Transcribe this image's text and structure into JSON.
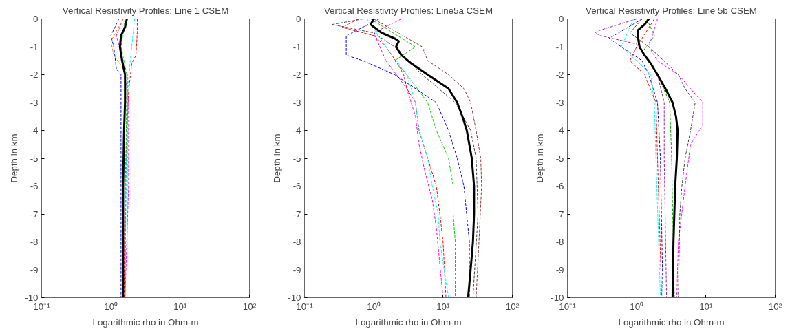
{
  "chart_data": [
    {
      "type": "line",
      "title": "Vertical Resistivity Profiles: Line 1 CSEM",
      "xlabel": "Logarithmic rho in Ohm-m",
      "ylabel": "Depth in km",
      "log": "x",
      "xlim": [
        0.1,
        100
      ],
      "xticks": [
        {
          "value": 0.1,
          "label": "10⁻¹"
        },
        {
          "value": 1,
          "label": "10⁰"
        },
        {
          "value": 10,
          "label": "10¹"
        },
        {
          "value": 100,
          "label": "10²"
        }
      ],
      "ylim": [
        -10,
        0
      ],
      "yticks": [
        0,
        -1,
        -2,
        -3,
        -4,
        -5,
        -6,
        -7,
        -8,
        -9,
        -10
      ],
      "series": [
        {
          "color": "#ff0000",
          "line_style": "dashed",
          "x": [
            2.4,
            2.4,
            2.3,
            2.0,
            1.8,
            1.7,
            1.6,
            1.55
          ],
          "values": [
            0,
            -0.5,
            -1.3,
            -1.6,
            -2.6,
            -4,
            -6,
            -10
          ]
        },
        {
          "color": "#0000ff",
          "line_style": "dashed",
          "x": [
            1.3,
            1.0,
            1.1,
            1.2,
            1.4,
            1.4,
            1.4
          ],
          "values": [
            0,
            -0.6,
            -1.0,
            -1.8,
            -2,
            -4,
            -10
          ]
        },
        {
          "color": "#ff00ff",
          "line_style": "dashed",
          "x": [
            1.5,
            1.2,
            1.5,
            1.8,
            1.8,
            1.6
          ],
          "values": [
            0,
            -0.6,
            -1.5,
            -3,
            -6,
            -10
          ]
        },
        {
          "color": "#00ffff",
          "line_style": "dashed",
          "x": [
            2.2,
            1.9,
            1.7,
            1.6
          ],
          "values": [
            0,
            -1.5,
            -3,
            -10
          ]
        },
        {
          "color": "#00cc00",
          "line_style": "dashed",
          "x": [
            1.6,
            1.4,
            1.7,
            1.65,
            1.6
          ],
          "values": [
            0,
            -1,
            -2,
            -5,
            -10
          ]
        },
        {
          "color": "#ff8000",
          "line_style": "dashed",
          "x": [
            1.5,
            1.0,
            1.1,
            1.75,
            1.7
          ],
          "values": [
            0,
            -0.8,
            -1.3,
            -2,
            -10
          ]
        },
        {
          "color": "#000000",
          "line_style": "solid",
          "x": [
            1.7,
            1.6,
            1.4,
            1.35,
            1.45,
            1.6,
            1.6,
            1.55,
            1.5,
            1.5
          ],
          "values": [
            0,
            -0.3,
            -0.6,
            -1.0,
            -1.5,
            -2,
            -3,
            -4,
            -6,
            -10
          ]
        }
      ]
    },
    {
      "type": "line",
      "title": "Vertical Resistivity Profiles: Line5a CSEM",
      "xlabel": "Logarithmic rho in Ohm-m",
      "ylabel": "Depth in km",
      "log": "x",
      "xlim": [
        0.1,
        100
      ],
      "xticks": [
        {
          "value": 0.1,
          "label": "10⁻¹"
        },
        {
          "value": 1,
          "label": "10⁰"
        },
        {
          "value": 10,
          "label": "10¹"
        },
        {
          "value": 100,
          "label": "10²"
        }
      ],
      "ylim": [
        -10,
        0
      ],
      "yticks": [
        0,
        -1,
        -2,
        -3,
        -4,
        -5,
        -6,
        -7,
        -8,
        -9,
        -10
      ],
      "series": [
        {
          "color": "#ff0000",
          "line_style": "dashed",
          "x": [
            0.6,
            0.35,
            1.0,
            1.5,
            2.2,
            2.7,
            3.0,
            4.0,
            4.5,
            6,
            8,
            9,
            10,
            11
          ],
          "values": [
            0,
            -0.3,
            -0.6,
            -1.0,
            -1.6,
            -2,
            -2.5,
            -3,
            -4,
            -5,
            -6,
            -7,
            -8,
            -10
          ]
        },
        {
          "color": "#00ffff",
          "line_style": "dashed",
          "x": [
            0.8,
            1.5,
            3,
            4,
            4.5,
            6,
            7,
            8.5,
            9,
            12
          ],
          "values": [
            0,
            -1,
            -2,
            -3,
            -4,
            -5,
            -6,
            -7,
            -8,
            -10
          ]
        },
        {
          "color": "#ff00ff",
          "line_style": "dashed",
          "x": [
            2.5,
            1,
            1.5,
            3,
            4,
            4.5,
            5.5,
            7,
            8,
            10
          ],
          "values": [
            0,
            -0.5,
            -1.5,
            -2.5,
            -3.5,
            -4.5,
            -5.5,
            -6.5,
            -7.5,
            -10
          ]
        },
        {
          "color": "#00cc00",
          "line_style": "dashed",
          "x": [
            0.9,
            4,
            2.0,
            3,
            6,
            8,
            12,
            14,
            14,
            15,
            15
          ],
          "values": [
            0,
            -1,
            -1.5,
            -2,
            -3,
            -4,
            -5,
            -6,
            -7,
            -8,
            -10
          ]
        },
        {
          "color": "#0000ff",
          "line_style": "dashed",
          "x": [
            1.2,
            0.4,
            0.4,
            0.7,
            2,
            8,
            12,
            16,
            20,
            24,
            24
          ],
          "values": [
            0,
            -0.6,
            -1.3,
            -1.5,
            -2,
            -3,
            -4,
            -5,
            -6,
            -8,
            -10
          ]
        },
        {
          "color": "#8b3a3a",
          "line_style": "dashed",
          "x": [
            1.0,
            5,
            6,
            12,
            20,
            25,
            30,
            35,
            36,
            33,
            30
          ],
          "values": [
            0,
            -1,
            -1.5,
            -2,
            -2.5,
            -3,
            -4,
            -5,
            -6,
            -8,
            -10
          ]
        },
        {
          "color": "#404040",
          "line_style": "dashed",
          "x": [
            0.7,
            0.25,
            1.0,
            2.0,
            5,
            15,
            25,
            30,
            32,
            27
          ],
          "values": [
            0,
            -0.2,
            -0.5,
            -1,
            -2,
            -3,
            -4,
            -5,
            -7,
            -10
          ]
        },
        {
          "color": "#000000",
          "line_style": "solid",
          "x": [
            1.0,
            0.9,
            1.3,
            2.0,
            2.3,
            2.1,
            2.5,
            3.5,
            6,
            12,
            16,
            19,
            22,
            26,
            28,
            28,
            27,
            25,
            23
          ],
          "values": [
            0,
            -0.2,
            -0.5,
            -0.7,
            -0.8,
            -1.0,
            -1.3,
            -1.6,
            -2,
            -2.5,
            -3,
            -3.5,
            -4,
            -5,
            -6,
            -7,
            -8,
            -9,
            -10
          ]
        }
      ]
    },
    {
      "type": "line",
      "title": "Vertical Resistivity Profiles: Line 5b CSEM",
      "xlabel": "Logarithmic rho in Ohm-m",
      "ylabel": "Depth in km",
      "log": "x",
      "xlim": [
        0.1,
        100
      ],
      "xticks": [
        {
          "value": 0.1,
          "label": "10⁻¹"
        },
        {
          "value": 1,
          "label": "10⁰"
        },
        {
          "value": 10,
          "label": "10¹"
        },
        {
          "value": 100,
          "label": "10²"
        }
      ],
      "ylim": [
        -10,
        0
      ],
      "yticks": [
        0,
        -1,
        -2,
        -3,
        -4,
        -5,
        -6,
        -7,
        -8,
        -9,
        -10
      ],
      "series": [
        {
          "color": "#a020a0",
          "line_style": "dashed",
          "x": [
            1.0,
            0.3,
            0.25,
            0.3,
            1.0,
            1.5,
            2,
            2.5,
            2.5,
            2.7
          ],
          "values": [
            0,
            -0.4,
            -0.5,
            -0.6,
            -0.9,
            -1.5,
            -2,
            -3,
            -5,
            -10
          ]
        },
        {
          "color": "#0000ff",
          "line_style": "dashed",
          "x": [
            1.2,
            0.4,
            0.6,
            1.2,
            1.5,
            2.0,
            2.2,
            2.4
          ],
          "values": [
            0,
            -0.7,
            -1,
            -1.5,
            -2,
            -3,
            -5,
            -10
          ]
        },
        {
          "color": "#ff00ff",
          "line_style": "dashed",
          "x": [
            2.0,
            1.5,
            2.0,
            4,
            6,
            9,
            9,
            6,
            5,
            4,
            3.8
          ],
          "values": [
            0,
            -1,
            -1.5,
            -2,
            -2.5,
            -3,
            -3.8,
            -4.5,
            -6,
            -8,
            -10
          ]
        },
        {
          "color": "#404040",
          "line_style": "dashed",
          "x": [
            1.2,
            0.8,
            1.5,
            3,
            4,
            5,
            7,
            6,
            5,
            4.5,
            4.2,
            4
          ],
          "values": [
            0,
            -0.5,
            -1,
            -1.7,
            -2,
            -2.5,
            -3,
            -4,
            -5,
            -6,
            -7,
            -10
          ]
        },
        {
          "color": "#00ffff",
          "line_style": "dashed",
          "x": [
            0.9,
            0.6,
            1.0,
            1.6,
            1.8,
            1.9,
            2.2
          ],
          "values": [
            0,
            -1,
            -1.5,
            -2,
            -3,
            -5,
            -10
          ]
        },
        {
          "color": "#ff0000",
          "line_style": "dashed",
          "x": [
            1.8,
            1.0,
            0.8,
            1.3,
            1.9,
            2.0,
            2.3
          ],
          "values": [
            0,
            -1,
            -1.5,
            -2,
            -3,
            -5,
            -10
          ]
        },
        {
          "color": "#00aa00",
          "line_style": "dashed",
          "x": [
            1.4,
            1.8,
            1.2,
            2.0,
            3.0,
            3.2,
            3.5
          ],
          "values": [
            0,
            -0.6,
            -1.2,
            -2,
            -3,
            -5,
            -10
          ]
        },
        {
          "color": "#000000",
          "line_style": "solid",
          "x": [
            1.5,
            1.3,
            1.05,
            1.05,
            1.1,
            1.3,
            1.6,
            2.0,
            2.6,
            3.3,
            3.7,
            3.9,
            3.8,
            3.6,
            3.4,
            3.3
          ],
          "values": [
            0,
            -0.2,
            -0.4,
            -0.7,
            -1,
            -1.3,
            -1.6,
            -2,
            -2.5,
            -3,
            -3.5,
            -4,
            -5,
            -6,
            -8,
            -10
          ]
        }
      ]
    }
  ]
}
